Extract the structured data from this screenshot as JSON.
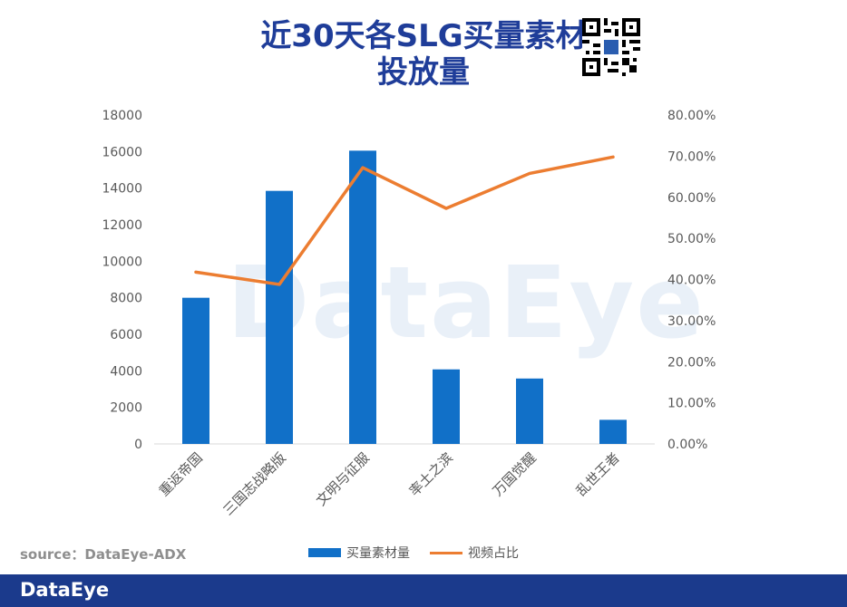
{
  "title": {
    "line1": "近30天各SLG买量素材",
    "line2": "投放量"
  },
  "watermark": "DataEye",
  "source": "source：DataEye-ADX",
  "footer": {
    "brand": "DataEye"
  },
  "colors": {
    "bar": "#1170c8",
    "line": "#ec7d31",
    "title": "#1f3d99",
    "footer": "#1b3a8c"
  },
  "chart_data": {
    "type": "bar",
    "categories": [
      "重返帝国",
      "三国志战略版",
      "文明与征服",
      "率土之滨",
      "万国觉醒",
      "乱世王者"
    ],
    "series": [
      {
        "name": "买量素材量",
        "type": "bar",
        "axis": "left",
        "values": [
          8000,
          13850,
          16050,
          4080,
          3580,
          1320
        ]
      },
      {
        "name": "视频占比",
        "type": "line",
        "axis": "right",
        "values": [
          41.8,
          38.8,
          67.2,
          57.3,
          65.8,
          69.8
        ]
      }
    ],
    "y_left": {
      "min": 0,
      "max": 18000,
      "ticks": [
        "0",
        "2000",
        "4000",
        "6000",
        "8000",
        "10000",
        "12000",
        "14000",
        "16000",
        "18000"
      ]
    },
    "y_right": {
      "min": 0,
      "max": 80,
      "ticks": [
        "0.00%",
        "10.00%",
        "20.00%",
        "30.00%",
        "40.00%",
        "50.00%",
        "60.00%",
        "70.00%",
        "80.00%"
      ]
    },
    "legend_position": "bottom",
    "grid": false
  }
}
